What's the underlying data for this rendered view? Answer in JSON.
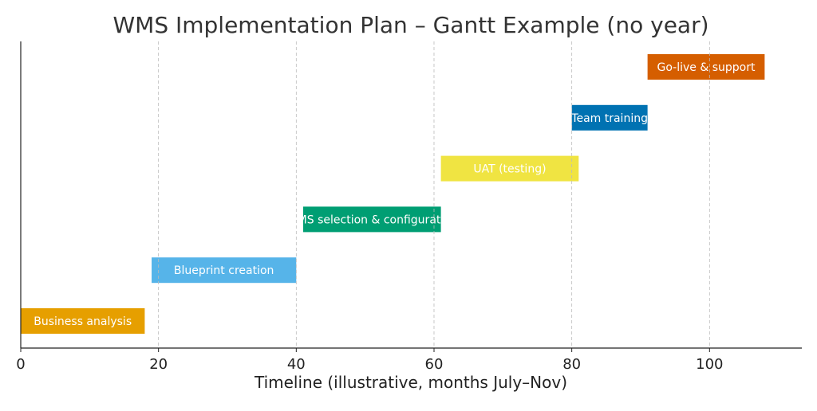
{
  "chart_data": {
    "type": "bar",
    "orientation": "horizontal-gantt",
    "title": "WMS Implementation Plan – Gantt Example (no year)",
    "xlabel": "Timeline (illustrative, months July–Nov)",
    "ylabel": "",
    "xlim": [
      0,
      113.4
    ],
    "xticks": [
      0,
      20,
      40,
      60,
      80,
      100
    ],
    "grid": "x-dashed",
    "tasks": [
      {
        "name": "Business analysis",
        "start": 0,
        "end": 18,
        "color": "#E69F00"
      },
      {
        "name": "Blueprint creation",
        "start": 19,
        "end": 40,
        "color": "#56B4E9"
      },
      {
        "name": "WMS selection & configuration",
        "start": 41,
        "end": 61,
        "color": "#009E73"
      },
      {
        "name": "UAT (testing)",
        "start": 61,
        "end": 81,
        "color": "#F0E442"
      },
      {
        "name": "Team training",
        "start": 80,
        "end": 91,
        "color": "#0072B2"
      },
      {
        "name": "Go-live & support",
        "start": 91,
        "end": 108,
        "color": "#D55E00"
      }
    ]
  }
}
